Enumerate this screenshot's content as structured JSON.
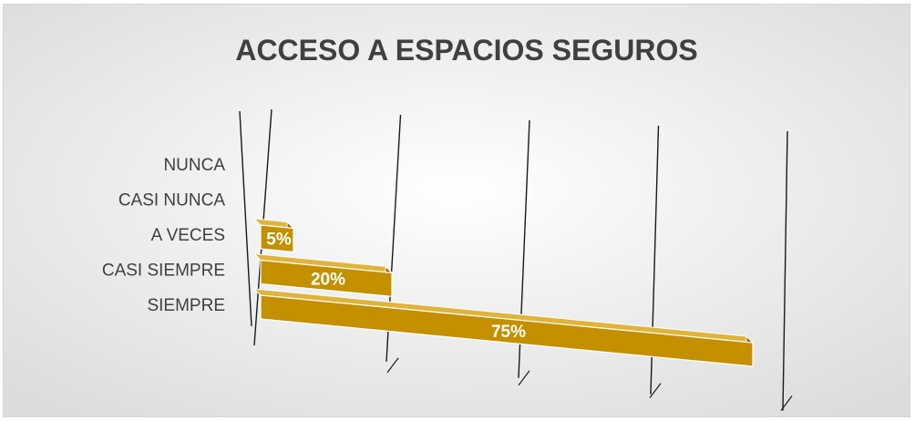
{
  "chart_data": {
    "type": "bar",
    "orientation": "horizontal",
    "style": "3d",
    "title": "ACCESO A ESPACIOS SEGUROS",
    "categories": [
      "NUNCA",
      "CASI NUNCA",
      "A VECES",
      "CASI SIEMPRE",
      "SIEMPRE"
    ],
    "values": [
      0,
      0,
      5,
      20,
      75
    ],
    "data_labels": [
      "",
      "",
      "5%",
      "20%",
      "75%"
    ],
    "xlim": [
      0,
      80
    ],
    "grid": true,
    "legend": "none"
  },
  "colors": {
    "bar_front": "#c49000",
    "bar_top": "#e0b43c",
    "bar_side": "#8f6a00",
    "background_center": "#ffffff",
    "background_edge": "#dcdcdc",
    "label_text": "#404040",
    "title_text": "#404040",
    "data_label_text": "#ffffff"
  }
}
